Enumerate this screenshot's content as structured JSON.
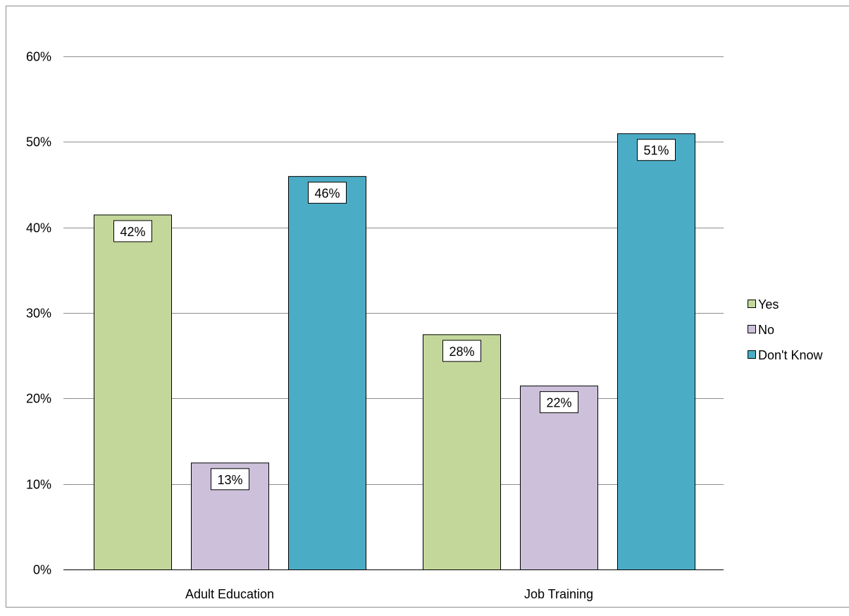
{
  "chart_data": {
    "type": "bar",
    "title": "",
    "xlabel": "",
    "ylabel": "",
    "categories": [
      "Adult Education",
      "Job Training"
    ],
    "series": [
      {
        "name": "Yes",
        "values": [
          41.5,
          27.5
        ],
        "labels": [
          "42%",
          "28%"
        ],
        "color": "#c4d79b"
      },
      {
        "name": "No",
        "values": [
          12.5,
          21.5
        ],
        "labels": [
          "13%",
          "22%"
        ],
        "color": "#ccc0da"
      },
      {
        "name": "Don't Know",
        "values": [
          46,
          51
        ],
        "labels": [
          "46%",
          "51%"
        ],
        "color": "#4bacc6"
      }
    ],
    "ylim": [
      0,
      60
    ],
    "yticks": [
      0,
      10,
      20,
      30,
      40,
      50,
      60
    ],
    "ytick_labels": [
      "0%",
      "10%",
      "20%",
      "30%",
      "40%",
      "50%",
      "60%"
    ],
    "grid": true,
    "legend_position": "right"
  }
}
